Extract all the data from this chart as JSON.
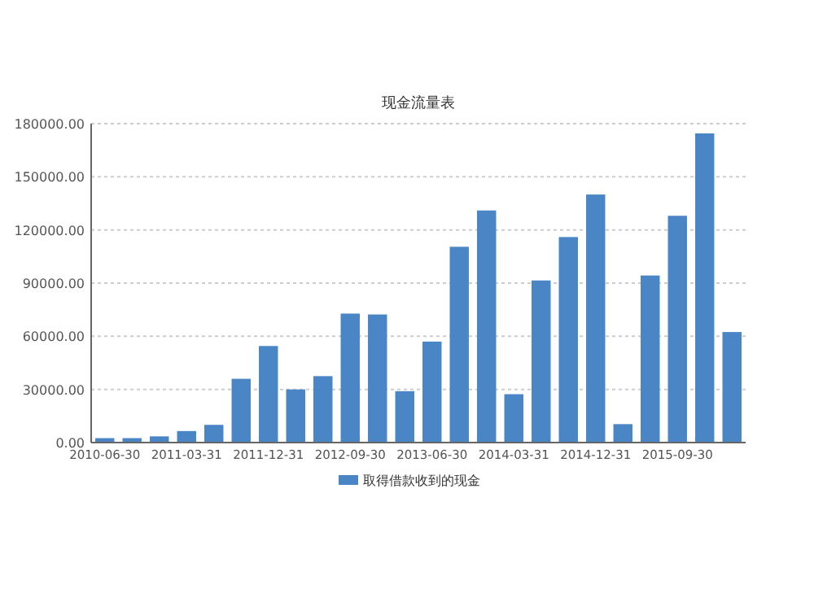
{
  "chart_data": {
    "type": "bar",
    "title": "现金流量表",
    "categories": [
      "2010-06-30",
      null,
      null,
      "2011-03-31",
      null,
      null,
      "2011-12-31",
      null,
      null,
      "2012-09-30",
      null,
      null,
      "2013-06-30",
      null,
      null,
      "2014-03-31",
      null,
      null,
      "2014-12-31",
      null,
      null,
      "2015-09-30",
      null,
      null
    ],
    "series": [
      {
        "name": "取得借款收到的现金",
        "color": "#4a86c5",
        "values": [
          2500,
          2500,
          3500,
          6500,
          10000,
          36000,
          54500,
          30000,
          37500,
          72800,
          72300,
          29000,
          57000,
          110500,
          131000,
          27300,
          91500,
          116000,
          140000,
          10400,
          94300,
          128000,
          174500,
          62400
        ]
      }
    ],
    "ylim": [
      0,
      180000
    ],
    "yticks": [
      {
        "value": 0,
        "label": "0.00"
      },
      {
        "value": 30000,
        "label": "30000.00"
      },
      {
        "value": 60000,
        "label": "60000.00"
      },
      {
        "value": 90000,
        "label": "90000.00"
      },
      {
        "value": 120000,
        "label": "120000.00"
      },
      {
        "value": 150000,
        "label": "150000.00"
      },
      {
        "value": 180000,
        "label": "180000.00"
      }
    ],
    "grid": "y",
    "legend": "bottom"
  }
}
